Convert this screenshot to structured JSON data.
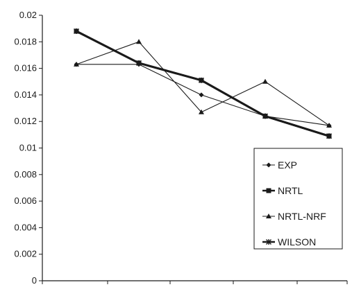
{
  "chart_data": {
    "type": "line",
    "title": "",
    "xlabel": "",
    "ylabel": "",
    "x": [
      1,
      2,
      3,
      4,
      5
    ],
    "ylim": [
      0,
      0.02
    ],
    "yticks": [
      0,
      0.002,
      0.004,
      0.006,
      0.008,
      0.01,
      0.012,
      0.014,
      0.016,
      0.018,
      0.02
    ],
    "ytick_labels": [
      "0",
      "0.002",
      "0.004",
      "0.006",
      "0.008",
      "0.01",
      "0.012",
      "0.014",
      "0.016",
      "0.018",
      "0.02"
    ],
    "grid": false,
    "legend_position": "right",
    "series": [
      {
        "name": "EXP",
        "marker": "diamond",
        "line": "thin",
        "values": [
          0.0163,
          0.0163,
          0.014,
          0.0124,
          0.0117
        ]
      },
      {
        "name": "NRTL",
        "marker": "square",
        "line": "thick",
        "values": [
          0.0188,
          0.0164,
          0.0151,
          0.0124,
          0.0109
        ]
      },
      {
        "name": "NRTL-NRF",
        "marker": "triangle",
        "line": "thin",
        "values": [
          0.0163,
          0.018,
          0.0127,
          0.015,
          0.0117
        ]
      },
      {
        "name": "WILSON",
        "marker": "star",
        "line": "thick",
        "values": [
          0.0188,
          0.0164,
          0.0151,
          0.0124,
          0.0109
        ]
      }
    ],
    "colors": {
      "ink": "#1a1a1a",
      "background": "#ffffff"
    }
  }
}
